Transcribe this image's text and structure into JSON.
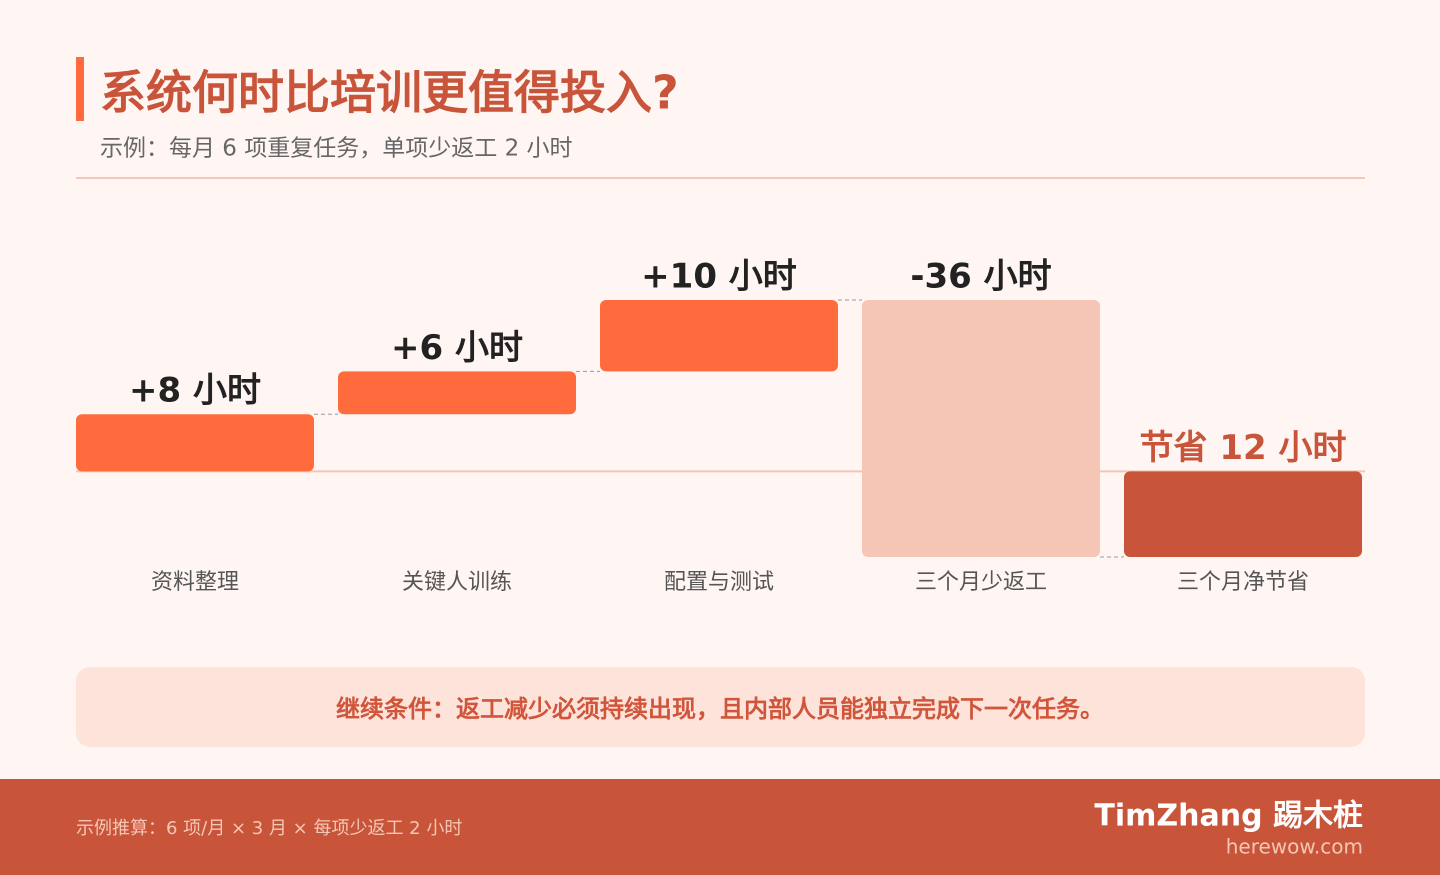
{
  "chart_data": {
    "type": "waterfall",
    "title": "系统何时比培训更值得投入?",
    "subtitle": "示例：每月 6 项重复任务，单项少返工 2 小时",
    "categories": [
      "资料整理",
      "关键人训练",
      "配置与测试",
      "三个月少返工",
      "三个月净节省"
    ],
    "values": [
      8,
      6,
      10,
      -36,
      -12
    ],
    "value_labels": [
      "+8 小时",
      "+6 小时",
      "+10 小时",
      "-36 小时",
      "节省 12 小时"
    ],
    "measure": [
      "relative",
      "relative",
      "relative",
      "relative",
      "total"
    ],
    "colors": [
      "#ff6b3d",
      "#ff6b3d",
      "#ff6b3d",
      "#f5c6b5",
      "#c8553a"
    ]
  },
  "note": "继续条件：返工减少必须持续出现，且内部人员能独立完成下一次任务。",
  "footer": {
    "calculation": "示例推算：6 项/月 × 3 月 × 每项少返工 2 小时",
    "brand": "TimZhang 踢木桩",
    "site": "herewow.com"
  }
}
